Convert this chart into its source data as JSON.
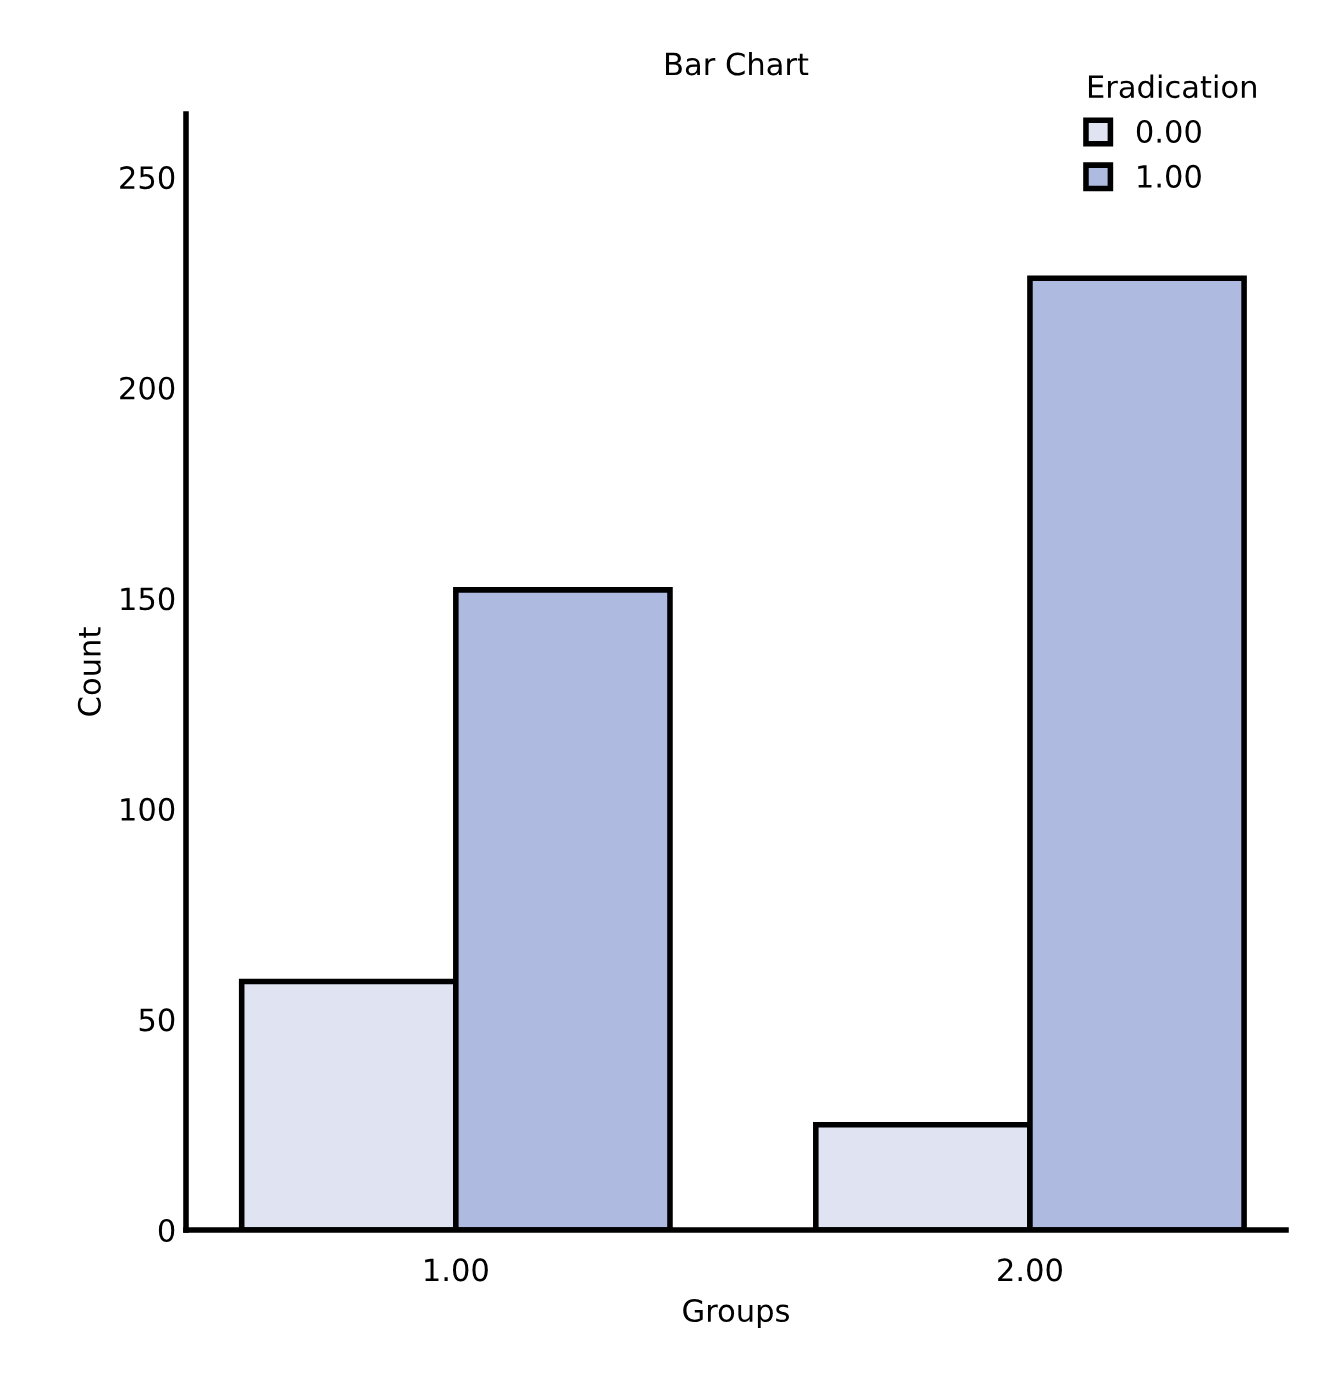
{
  "chart_data": {
    "type": "bar",
    "title": "Bar Chart",
    "xlabel": "Groups",
    "ylabel": "Count",
    "legend_title": "Eradication",
    "categories": [
      "1.00",
      "2.00"
    ],
    "series": [
      {
        "name": "0.00",
        "color": "#dfe3f2",
        "values": [
          59,
          25
        ]
      },
      {
        "name": "1.00",
        "color": "#aebae0",
        "values": [
          152,
          226
        ]
      }
    ],
    "ylim": [
      0,
      265
    ],
    "yticks": [
      0,
      50,
      100,
      150,
      200,
      250
    ],
    "grid": false,
    "legend": "top right"
  }
}
